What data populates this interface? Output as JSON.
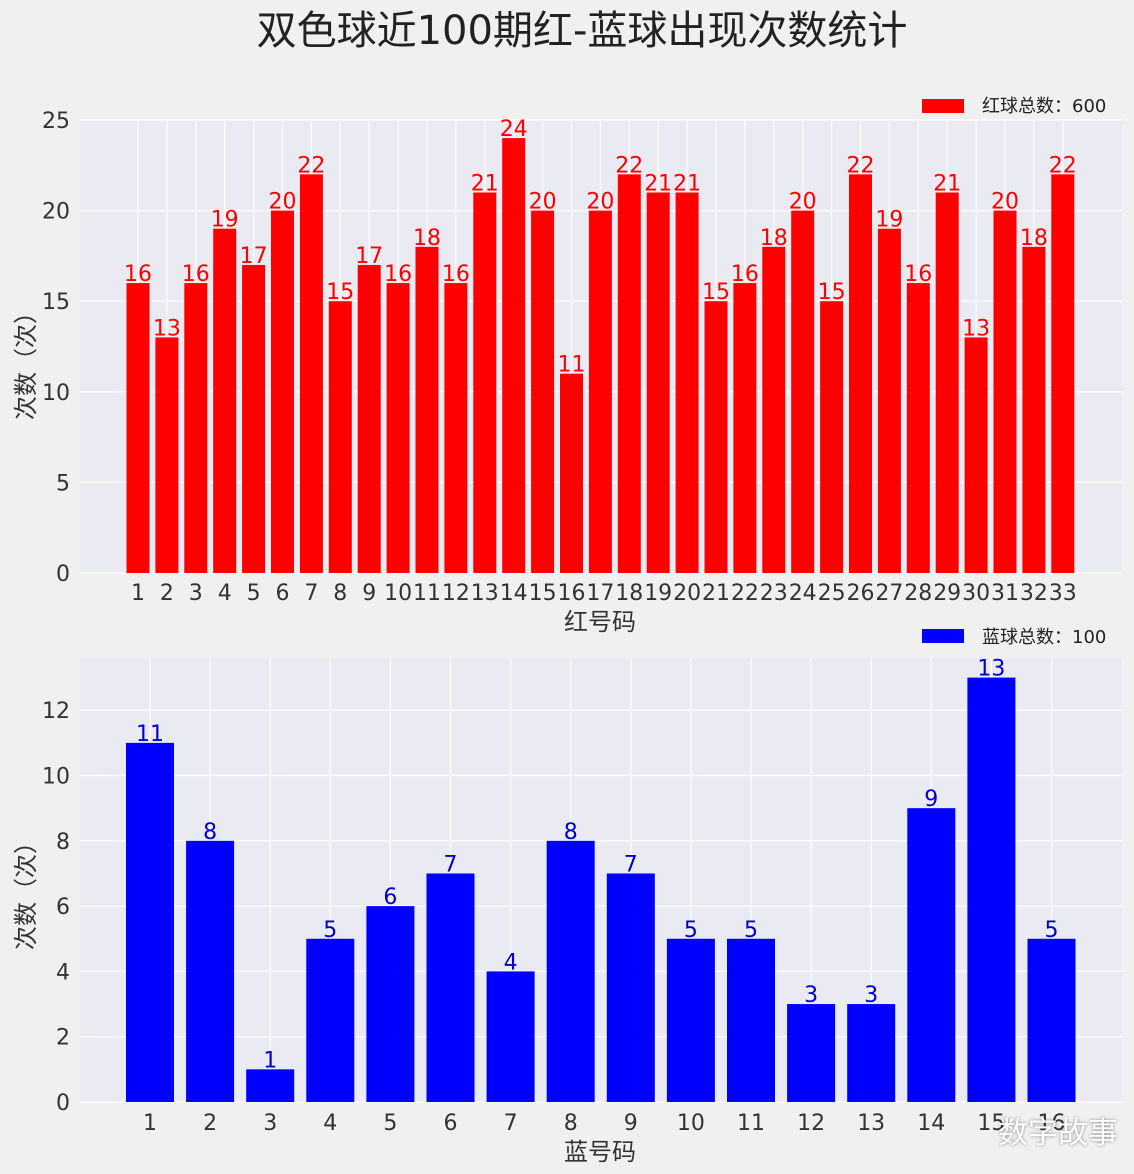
{
  "title": "双色球近100期红-蓝球出现次数统计",
  "watermark": "数字故事",
  "chart_data": [
    {
      "type": "bar",
      "color": "#ff0000",
      "label_color": "#ff0000",
      "categories": [
        "1",
        "2",
        "3",
        "4",
        "5",
        "6",
        "7",
        "8",
        "9",
        "10",
        "11",
        "12",
        "13",
        "14",
        "15",
        "16",
        "17",
        "18",
        "19",
        "20",
        "21",
        "22",
        "23",
        "24",
        "25",
        "26",
        "27",
        "28",
        "29",
        "30",
        "31",
        "32",
        "33"
      ],
      "values": [
        16,
        13,
        16,
        19,
        17,
        20,
        22,
        15,
        17,
        16,
        18,
        16,
        21,
        24,
        20,
        11,
        20,
        22,
        21,
        21,
        15,
        16,
        18,
        20,
        15,
        22,
        19,
        16,
        21,
        13,
        20,
        18,
        22
      ],
      "xlabel": "红号码",
      "ylabel": "次数（次）",
      "ylim": [
        0,
        25
      ],
      "yticks": [
        0,
        5,
        10,
        15,
        20,
        25
      ],
      "legend": "红球总数：600",
      "legend_position": "top-right",
      "grid": true
    },
    {
      "type": "bar",
      "color": "#0000ff",
      "label_color": "#0000cc",
      "categories": [
        "1",
        "2",
        "3",
        "4",
        "5",
        "6",
        "7",
        "8",
        "9",
        "10",
        "11",
        "12",
        "13",
        "14",
        "15",
        "16"
      ],
      "values": [
        11,
        8,
        1,
        5,
        6,
        7,
        4,
        8,
        7,
        5,
        5,
        3,
        3,
        9,
        13,
        5
      ],
      "xlabel": "蓝号码",
      "ylabel": "次数（次）",
      "ylim": [
        0,
        13.6
      ],
      "yticks": [
        0,
        2,
        4,
        6,
        8,
        10,
        12
      ],
      "legend": "蓝球总数：100",
      "legend_position": "top-right",
      "grid": true
    }
  ]
}
